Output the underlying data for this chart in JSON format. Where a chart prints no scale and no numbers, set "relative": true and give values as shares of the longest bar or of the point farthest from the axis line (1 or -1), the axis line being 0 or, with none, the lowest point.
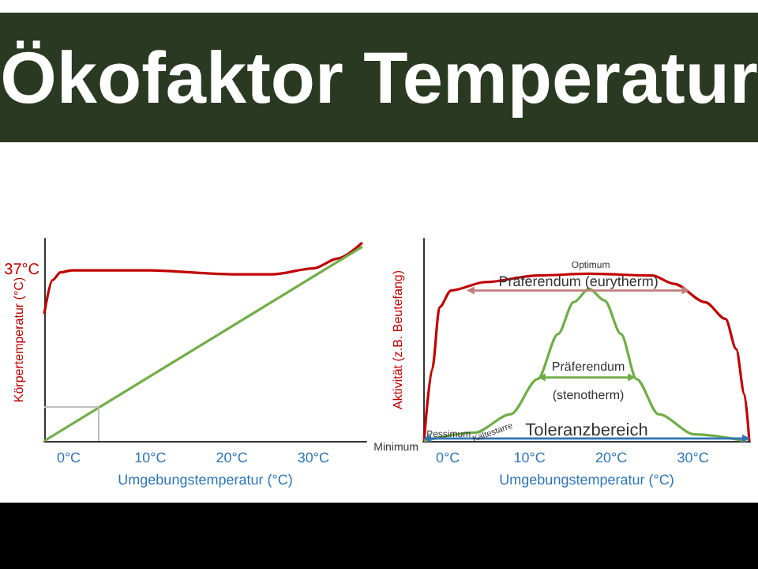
{
  "chart_data": [
    {
      "type": "line",
      "title": "Ökofaktor Temperatur",
      "relative": true,
      "xlabel": "Umgebungstemperatur (°C)",
      "ylabel": "Körpertemperatur (°C)",
      "xlim": [
        -3,
        36.5
      ],
      "xticks": [
        {
          "value": 0,
          "label": "0°C"
        },
        {
          "value": 10,
          "label": "10°C"
        },
        {
          "value": 20,
          "label": "20°C"
        },
        {
          "value": 30,
          "label": "30°C"
        }
      ],
      "series": [
        {
          "color": "#c00000",
          "x": [
            -3,
            -2,
            -1,
            0.4,
            10,
            20,
            25,
            30,
            33,
            36
          ],
          "values": [
            0.64,
            0.81,
            0.85,
            0.86,
            0.86,
            0.84,
            0.84,
            0.87,
            0.92,
            1.0
          ]
        },
        {
          "color": "#70ad47",
          "x": [
            -3,
            36
          ],
          "values": [
            0,
            0.98
          ]
        }
      ],
      "ref_lines": [
        {
          "axis": "x",
          "value": 3.6,
          "color": "#bfbfbf"
        },
        {
          "axis": "y",
          "value": 0.17,
          "color": "#bfbfbf"
        }
      ],
      "annotations": [
        "37°C"
      ],
      "marker": "none"
    },
    {
      "type": "line",
      "relative": true,
      "xlabel": "Umgebungstemperatur (°C)",
      "ylabel": "Aktivität (z.B. Beutefang)",
      "xlim": [
        -3,
        37
      ],
      "xticks": [
        {
          "value": 0,
          "label": "0°C"
        },
        {
          "value": 10,
          "label": "10°C"
        },
        {
          "value": 20,
          "label": "20°C"
        },
        {
          "value": 30,
          "label": "30°C"
        }
      ],
      "series": [
        {
          "color": "#c00000",
          "x": [
            -2.9,
            -1.9,
            -1,
            0.4,
            4.6,
            11,
            17.3,
            25,
            27.7,
            31.5,
            34,
            35.3,
            36.3,
            36.9
          ],
          "values": [
            0,
            0.43,
            0.8,
            0.9,
            0.95,
            0.99,
            1.0,
            0.99,
            0.94,
            0.83,
            0.73,
            0.55,
            0.28,
            0
          ]
        },
        {
          "color": "#70ad47",
          "x": [
            -2.9,
            3.3,
            7.7,
            11,
            13.5,
            15.4,
            17.3,
            19.2,
            21.2,
            23.1,
            25.8,
            30.2,
            36.5
          ],
          "values": [
            0,
            0.05,
            0.16,
            0.37,
            0.64,
            0.83,
            0.91,
            0.84,
            0.64,
            0.37,
            0.16,
            0.04,
            0
          ]
        }
      ],
      "annotations": [
        "Optimum",
        "Präferendum (eurytherm)",
        "Präferendum",
        "(stenotherm)",
        "Pessimum",
        "Kältestarre",
        "Toleranzbereich",
        "Minimum"
      ],
      "marker": "none"
    }
  ]
}
